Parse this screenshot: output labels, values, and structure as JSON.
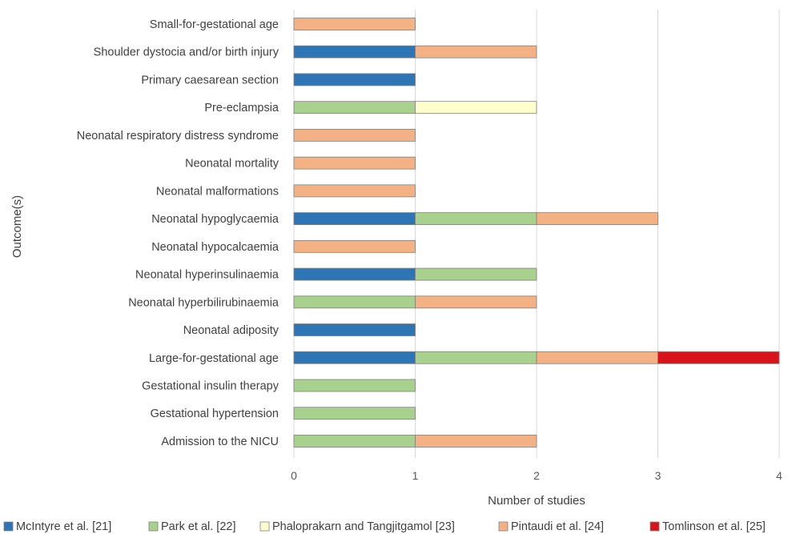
{
  "chart_data": {
    "type": "bar",
    "orientation": "horizontal",
    "stacked": true,
    "xlabel": "Number of studies",
    "ylabel": "Outcome(s)",
    "xlim": [
      0,
      4
    ],
    "xticks": [
      "0",
      "1",
      "2",
      "3",
      "4"
    ],
    "grid": "vertical",
    "legend_position": "bottom",
    "categories": [
      "Small-for-gestational age",
      "Shoulder dystocia and/or birth injury",
      "Primary caesarean section",
      "Pre-eclampsia",
      "Neonatal respiratory distress syndrome",
      "Neonatal mortality",
      "Neonatal malformations",
      "Neonatal hypoglycaemia",
      "Neonatal hypocalcaemia",
      "Neonatal hyperinsulinaemia",
      "Neonatal hyperbilirubinaemia",
      "Neonatal adiposity",
      "Large-for-gestational age",
      "Gestational insulin therapy",
      "Gestational hypertension",
      "Admission to the NICU"
    ],
    "series": [
      {
        "name": "McIntyre et al. [21]",
        "color": "#2e75b6",
        "values": [
          0,
          1,
          1,
          0,
          0,
          0,
          0,
          1,
          0,
          1,
          0,
          1,
          1,
          0,
          0,
          0
        ]
      },
      {
        "name": "Park et al. [22]",
        "color": "#a9d18e",
        "values": [
          0,
          0,
          0,
          1,
          0,
          0,
          0,
          1,
          0,
          1,
          1,
          0,
          1,
          1,
          1,
          1
        ]
      },
      {
        "name": "Phaloprakarn and Tangjitgamol [23]",
        "color": "#ffffcc",
        "values": [
          0,
          0,
          0,
          1,
          0,
          0,
          0,
          0,
          0,
          0,
          0,
          0,
          0,
          0,
          0,
          0
        ]
      },
      {
        "name": "Pintaudi et al. [24]",
        "color": "#f4b183",
        "values": [
          1,
          1,
          0,
          0,
          1,
          1,
          1,
          1,
          1,
          0,
          1,
          0,
          1,
          0,
          0,
          1
        ]
      },
      {
        "name": "Tomlinson et al. [25]",
        "color": "#d9131b",
        "values": [
          0,
          0,
          0,
          0,
          0,
          0,
          0,
          0,
          0,
          0,
          0,
          0,
          1,
          0,
          0,
          0
        ]
      }
    ]
  }
}
